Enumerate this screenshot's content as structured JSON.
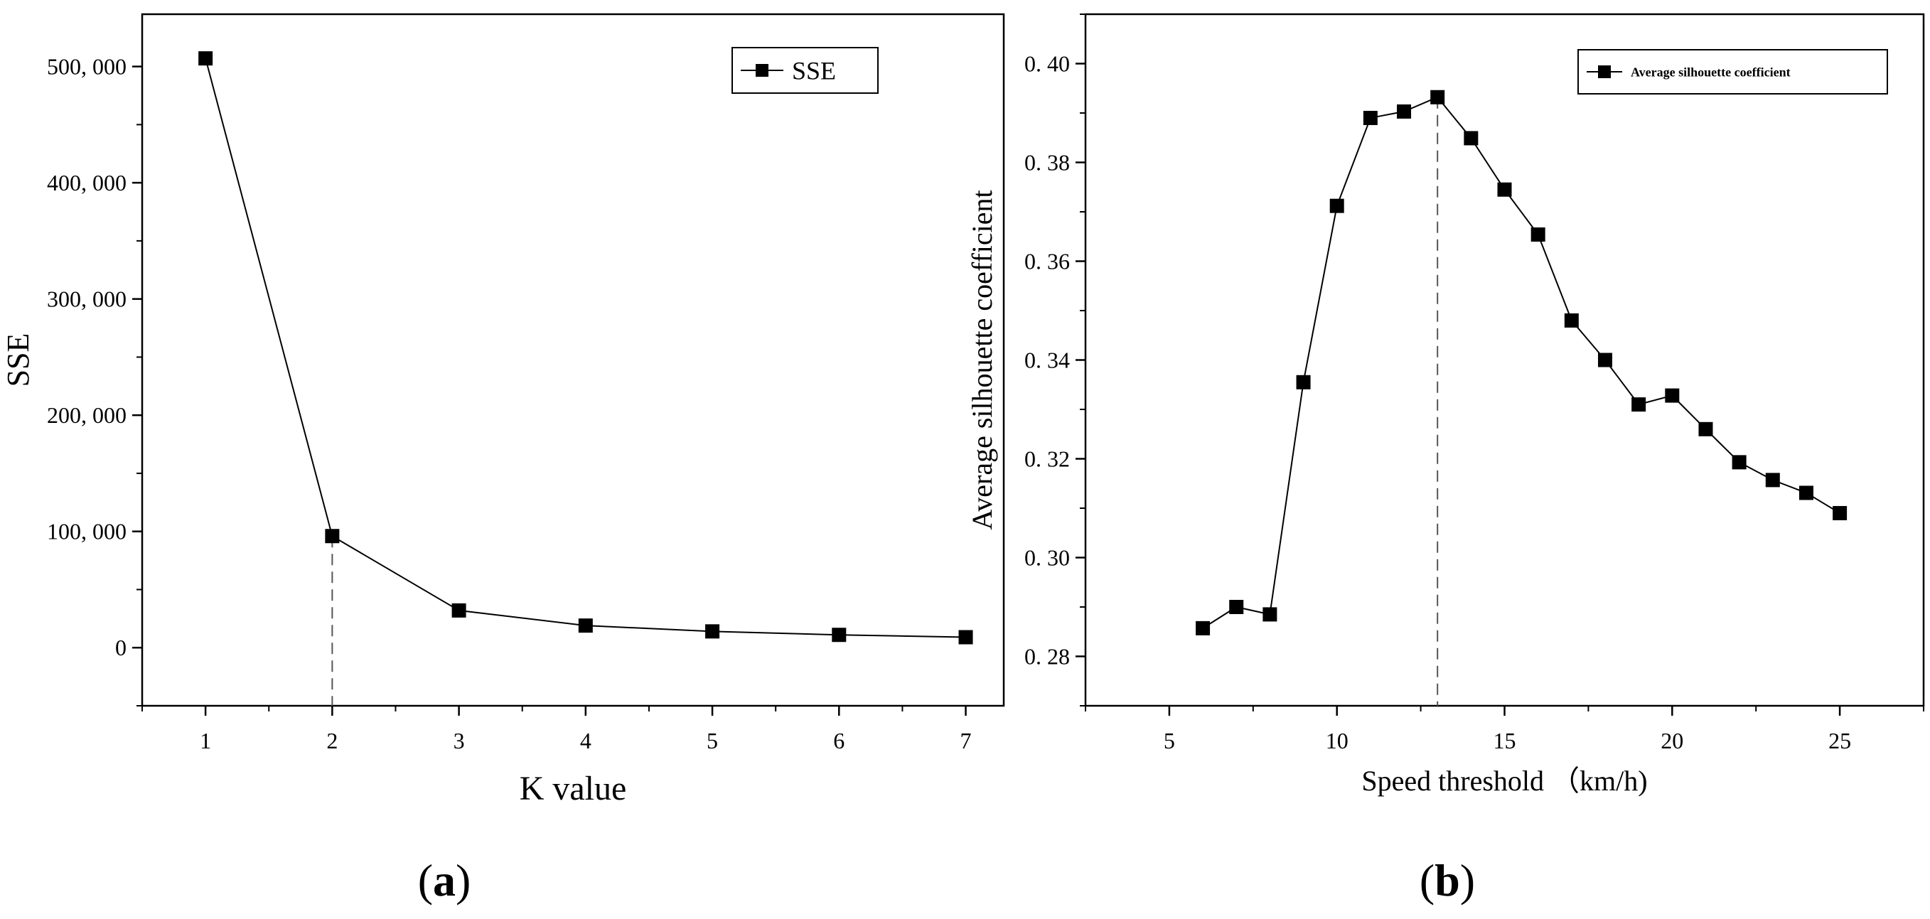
{
  "chart_data": [
    {
      "type": "line",
      "panel_label": "(a)",
      "panel_letter": "a",
      "xlabel": "K value",
      "ylabel": "SSE",
      "xlim": [
        0.5,
        7.3
      ],
      "ylim": [
        -50000,
        545000
      ],
      "xticks": [
        1,
        2,
        3,
        4,
        5,
        6,
        7
      ],
      "xtick_labels": [
        "1",
        "2",
        "3",
        "4",
        "5",
        "6",
        "7"
      ],
      "yticks": [
        0,
        100000,
        200000,
        300000,
        400000,
        500000
      ],
      "ytick_labels": [
        "0",
        "100, 000",
        "200, 000",
        "300, 000",
        "400, 000",
        "500, 000"
      ],
      "legend_position": "top-right",
      "marker": "square",
      "reference_line_x": 2,
      "series": [
        {
          "name": "SSE",
          "x": [
            1,
            2,
            3,
            4,
            5,
            6,
            7
          ],
          "values": [
            507000,
            96000,
            32000,
            19000,
            14000,
            11000,
            9000
          ]
        }
      ]
    },
    {
      "type": "line",
      "panel_label": "(b)",
      "panel_letter": "b",
      "xlabel": "Speed threshold （km/h)",
      "ylabel": "Average silhouette coefficient",
      "xlim": [
        2.5,
        27.5
      ],
      "ylim": [
        0.27,
        0.41
      ],
      "xticks": [
        5,
        10,
        15,
        20,
        25
      ],
      "xtick_labels": [
        "5",
        "10",
        "15",
        "20",
        "25"
      ],
      "yticks": [
        0.28,
        0.3,
        0.32,
        0.34,
        0.36,
        0.38,
        0.4
      ],
      "ytick_labels": [
        "0. 28",
        "0. 30",
        "0. 32",
        "0. 34",
        "0. 36",
        "0. 38",
        "0. 40"
      ],
      "legend_position": "top-right",
      "marker": "square",
      "reference_line_x": 13,
      "series": [
        {
          "name": "Average silhouette coefficient",
          "x": [
            6,
            7,
            8,
            9,
            10,
            11,
            12,
            13,
            14,
            15,
            16,
            17,
            18,
            19,
            20,
            21,
            22,
            23,
            24,
            25
          ],
          "values": [
            0.2857,
            0.29,
            0.2885,
            0.3355,
            0.3712,
            0.389,
            0.3903,
            0.3932,
            0.3849,
            0.3745,
            0.3654,
            0.348,
            0.34,
            0.331,
            0.3328,
            0.326,
            0.3193,
            0.3157,
            0.3131,
            0.309
          ]
        }
      ]
    }
  ]
}
